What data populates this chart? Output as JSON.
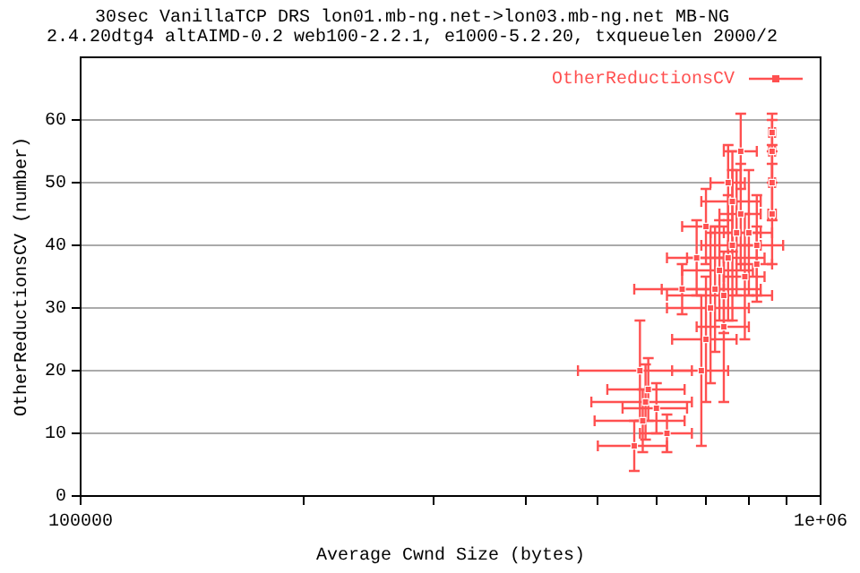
{
  "chart_data": {
    "type": "scatter",
    "title": "30sec VanillaTCP DRS lon01.mb-ng.net->lon03.mb-ng.net MB-NG",
    "subtitle": "2.4.20dtg4 altAIMD-0.2 web100-2.2.1, e1000-5.2.20, txqueuelen 2000/2",
    "xlabel": "Average Cwnd Size (bytes)",
    "ylabel": "OtherReductionsCV (number)",
    "log": "x",
    "grid": "y",
    "legend": "top right",
    "xlim": [
      100000,
      1000000
    ],
    "xticks": [
      {
        "value": 100000,
        "label": "100000"
      },
      {
        "value": 200000,
        "label": null
      },
      {
        "value": 300000,
        "label": null
      },
      {
        "value": 400000,
        "label": null
      },
      {
        "value": 500000,
        "label": null
      },
      {
        "value": 600000,
        "label": null
      },
      {
        "value": 700000,
        "label": null
      },
      {
        "value": 800000,
        "label": null
      },
      {
        "value": 900000,
        "label": null
      },
      {
        "value": 1000000,
        "label": "1e+06"
      }
    ],
    "ylim": [
      0,
      70
    ],
    "yticks": [
      0,
      10,
      20,
      30,
      40,
      50,
      60
    ],
    "series": [
      {
        "name": "OtherReductionsCV",
        "color": "#ff5050",
        "x": [
          560000,
          575000,
          580000,
          585000,
          570000,
          600000,
          620000,
          690000,
          700000,
          710000,
          720000,
          740000,
          730000,
          750000,
          760000,
          770000,
          780000,
          790000,
          760000,
          750000,
          780000,
          800000,
          820000,
          680000,
          700000,
          860000,
          860000,
          860000,
          860000,
          740000,
          650000,
          820000
        ],
        "values": [
          8,
          12,
          15,
          17,
          20,
          14,
          10,
          20,
          25,
          30,
          33,
          27,
          36,
          38,
          40,
          42,
          45,
          35,
          47,
          50,
          55,
          42,
          40,
          38,
          43,
          45,
          50,
          55,
          58,
          32,
          33,
          37
        ],
        "xerrors": [
          60000,
          80000,
          90000,
          70000,
          100000,
          60000,
          50000,
          60000,
          70000,
          90000,
          110000,
          60000,
          80000,
          90000,
          70000,
          60000,
          50000,
          50000,
          70000,
          40000,
          40000,
          60000,
          70000,
          60000,
          50000,
          10000,
          8000,
          8000,
          8000,
          120000,
          90000,
          40000
        ],
        "errors": [
          4,
          5,
          6,
          5,
          8,
          4,
          3,
          12,
          10,
          12,
          10,
          12,
          8,
          10,
          12,
          10,
          8,
          10,
          8,
          6,
          6,
          10,
          8,
          6,
          6,
          8,
          6,
          5,
          3,
          6,
          4,
          6
        ]
      }
    ]
  }
}
